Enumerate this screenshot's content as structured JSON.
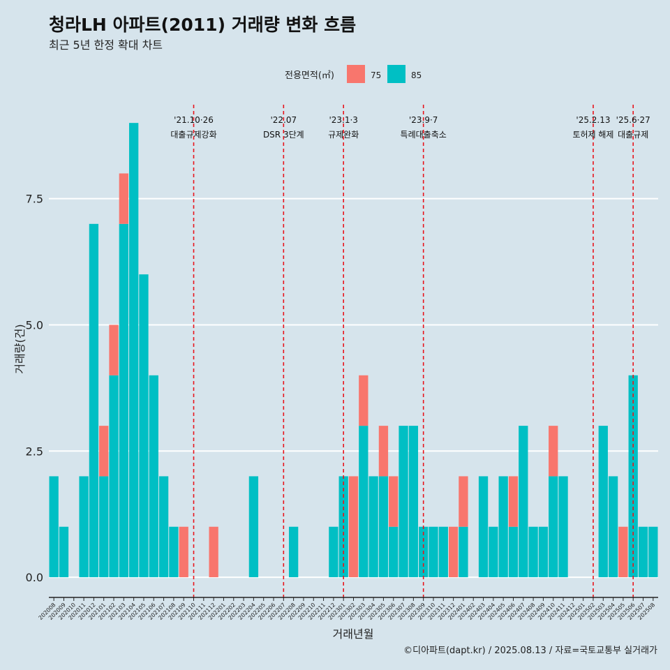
{
  "chart_data": {
    "type": "bar",
    "title": "청라LH 아파트(2011) 거래량 변화 흐름",
    "subtitle": "최근 5년 한정 확대 차트",
    "xlabel": "거래년월",
    "ylabel": "거래량(건)",
    "ylim": [
      -0.4,
      9.5
    ],
    "yticks": [
      0.0,
      2.5,
      5.0,
      7.5
    ],
    "ytick_labels": [
      "0.0",
      "2.5",
      "5.0",
      "7.5"
    ],
    "grid": true,
    "legend": {
      "title": "전용면적(㎡)",
      "position": "top-center"
    },
    "caption": "©디아파트(dapt.kr) / 2025.08.13 / 자료=국토교통부 실거래가",
    "categories": [
      "202008",
      "202009",
      "202010",
      "202011",
      "202012",
      "202101",
      "202102",
      "202103",
      "202104",
      "202105",
      "202106",
      "202107",
      "202108",
      "202109",
      "202110",
      "202111",
      "202112",
      "202201",
      "202202",
      "202203",
      "202204",
      "202205",
      "202206",
      "202207",
      "202208",
      "202209",
      "202210",
      "202211",
      "202212",
      "202301",
      "202302",
      "202303",
      "202304",
      "202305",
      "202306",
      "202307",
      "202308",
      "202309",
      "202310",
      "202311",
      "202312",
      "202401",
      "202402",
      "202403",
      "202404",
      "202405",
      "202406",
      "202407",
      "202408",
      "202409",
      "202410",
      "202411",
      "202412",
      "202501",
      "202502",
      "202503",
      "202504",
      "202505",
      "202506",
      "202507",
      "202508"
    ],
    "series": [
      {
        "name": "75",
        "color": "#f8766d",
        "values": [
          0,
          0,
          0,
          0,
          0,
          1,
          1,
          1,
          0,
          0,
          0,
          0,
          0,
          1,
          0,
          0,
          1,
          0,
          0,
          0,
          0,
          0,
          0,
          0,
          0,
          0,
          0,
          0,
          0,
          0,
          2,
          1,
          0,
          1,
          1,
          0,
          0,
          0,
          0,
          0,
          1,
          1,
          0,
          0,
          0,
          0,
          1,
          0,
          0,
          0,
          1,
          0,
          0,
          0,
          0,
          0,
          0,
          1,
          0,
          0,
          0
        ]
      },
      {
        "name": "85",
        "color": "#00bfc4",
        "values": [
          2,
          1,
          0,
          2,
          7,
          2,
          4,
          7,
          9,
          6,
          4,
          2,
          1,
          0,
          0,
          0,
          0,
          0,
          0,
          0,
          2,
          0,
          0,
          0,
          1,
          0,
          0,
          0,
          1,
          2,
          0,
          3,
          2,
          2,
          1,
          3,
          3,
          1,
          1,
          1,
          0,
          1,
          0,
          2,
          1,
          2,
          1,
          3,
          1,
          1,
          2,
          2,
          0,
          0,
          0,
          3,
          2,
          0,
          4,
          1,
          1
        ]
      }
    ],
    "events": [
      {
        "index": 14.5,
        "date": "'21.10·26",
        "label": "대출규제강화"
      },
      {
        "index": 23.5,
        "date": "'22.07",
        "label": "DSR 3단계"
      },
      {
        "index": 29.5,
        "date": "'23.1·3",
        "label": "규제완화"
      },
      {
        "index": 37.5,
        "date": "'23.9·7",
        "label": "특례대출축소"
      },
      {
        "index": 54.5,
        "date": "'25.2.13",
        "label": "토허제 해제"
      },
      {
        "index": 58.5,
        "date": "'25.6·27",
        "label": "대출규제"
      }
    ]
  }
}
